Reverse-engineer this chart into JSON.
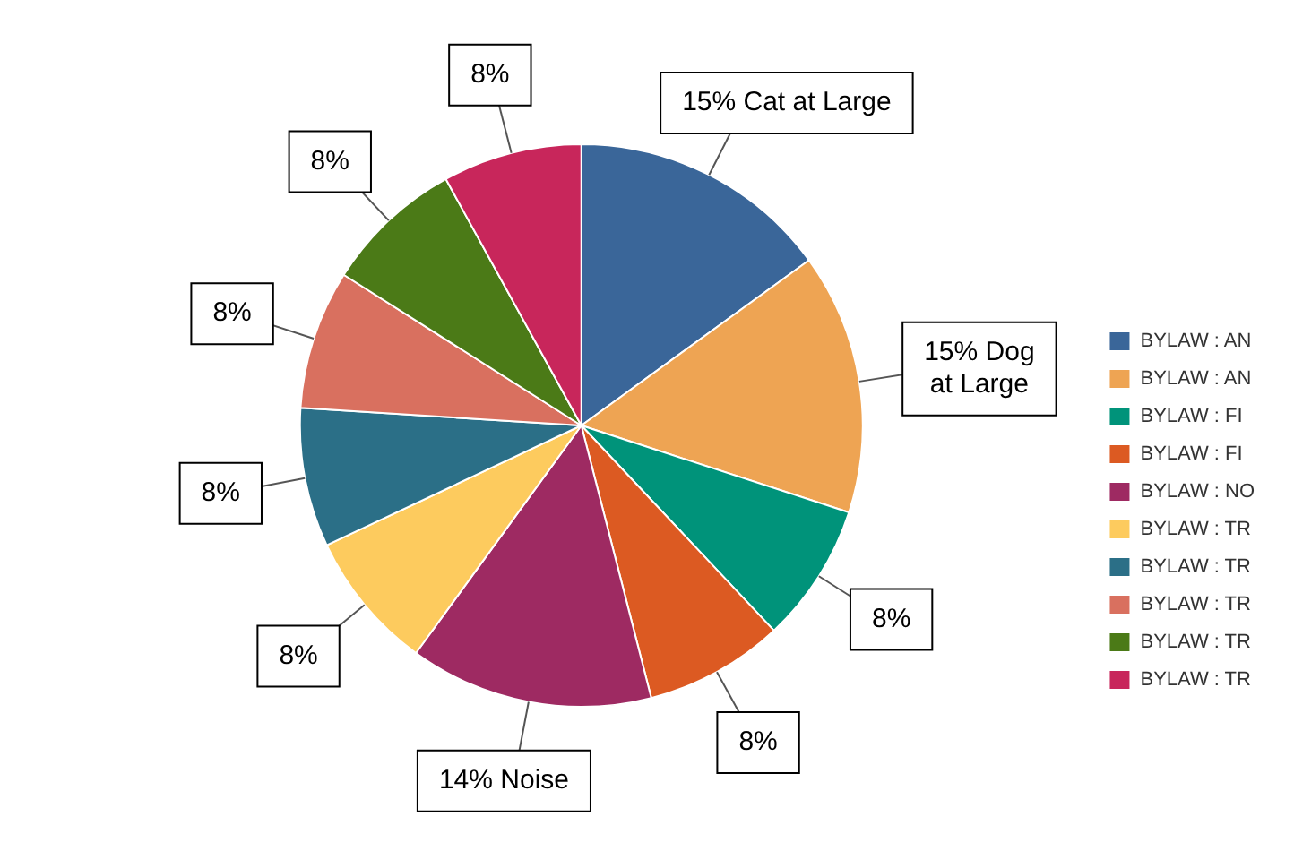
{
  "chart_data": {
    "type": "pie",
    "categories": [
      "BYLAW : AN",
      "BYLAW : AN",
      "BYLAW : FI",
      "BYLAW : FI",
      "BYLAW : NO",
      "BYLAW : TR",
      "BYLAW : TR",
      "BYLAW : TR",
      "BYLAW : TR",
      "BYLAW : TR"
    ],
    "values": [
      15,
      15,
      8,
      8,
      14,
      8,
      8,
      8,
      8,
      8
    ],
    "colors": [
      "#3a6699",
      "#eea453",
      "#00937a",
      "#dc5a22",
      "#9e2a62",
      "#fdcb5e",
      "#2b6f87",
      "#d9705f",
      "#4b7a17",
      "#c8265b"
    ],
    "value_labels": [
      "15% Cat at Large",
      "15% Dog at Large",
      "8%",
      "8%",
      "14% Noise",
      "8%",
      "8%",
      "8%",
      "8%",
      "8%"
    ],
    "legend": "bottom right"
  }
}
